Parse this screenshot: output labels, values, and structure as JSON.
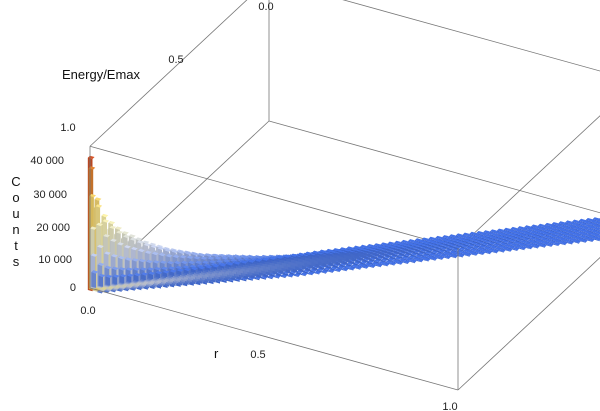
{
  "chart_data": {
    "type": "bar3d",
    "xlabel": "r",
    "ylabel": "Energy/Emax",
    "zlabel": "Counts",
    "x_ticks": [
      "0.0",
      "0.5",
      "1.0"
    ],
    "y_ticks": [
      "0.0",
      "0.5",
      "1.0"
    ],
    "z_ticks": [
      "0",
      "10 000",
      "20 000",
      "30 000",
      "40 000"
    ],
    "xlim": [
      0,
      1
    ],
    "ylim": [
      0,
      1
    ],
    "zlim": [
      0,
      45000
    ],
    "color_scheme": [
      "#3f6fe8",
      "#cfd8f2",
      "#fff6b0",
      "#f3c23f",
      "#cc2a1e"
    ],
    "ridge": [
      {
        "r": 0.0,
        "energy": 1.0,
        "counts": 42000
      },
      {
        "r": 0.01,
        "energy": 0.99,
        "counts": 30000
      },
      {
        "r": 0.02,
        "energy": 0.98,
        "counts": 24000
      },
      {
        "r": 0.04,
        "energy": 0.96,
        "counts": 20000
      },
      {
        "r": 0.06,
        "energy": 0.94,
        "counts": 17000
      },
      {
        "r": 0.08,
        "energy": 0.92,
        "counts": 15000
      },
      {
        "r": 0.1,
        "energy": 0.9,
        "counts": 13000
      },
      {
        "r": 0.14,
        "energy": 0.86,
        "counts": 10000
      },
      {
        "r": 0.2,
        "energy": 0.8,
        "counts": 7000
      },
      {
        "r": 0.3,
        "energy": 0.7,
        "counts": 4000
      },
      {
        "r": 0.4,
        "energy": 0.6,
        "counts": 2000
      },
      {
        "r": 0.5,
        "energy": 0.5,
        "counts": 1000
      },
      {
        "r": 0.6,
        "energy": 0.4,
        "counts": 600
      },
      {
        "r": 0.7,
        "energy": 0.3,
        "counts": 400
      },
      {
        "r": 0.8,
        "energy": 0.2,
        "counts": 300
      },
      {
        "r": 0.9,
        "energy": 0.1,
        "counts": 200
      },
      {
        "r": 1.0,
        "energy": 0.0,
        "counts": 100
      }
    ]
  }
}
